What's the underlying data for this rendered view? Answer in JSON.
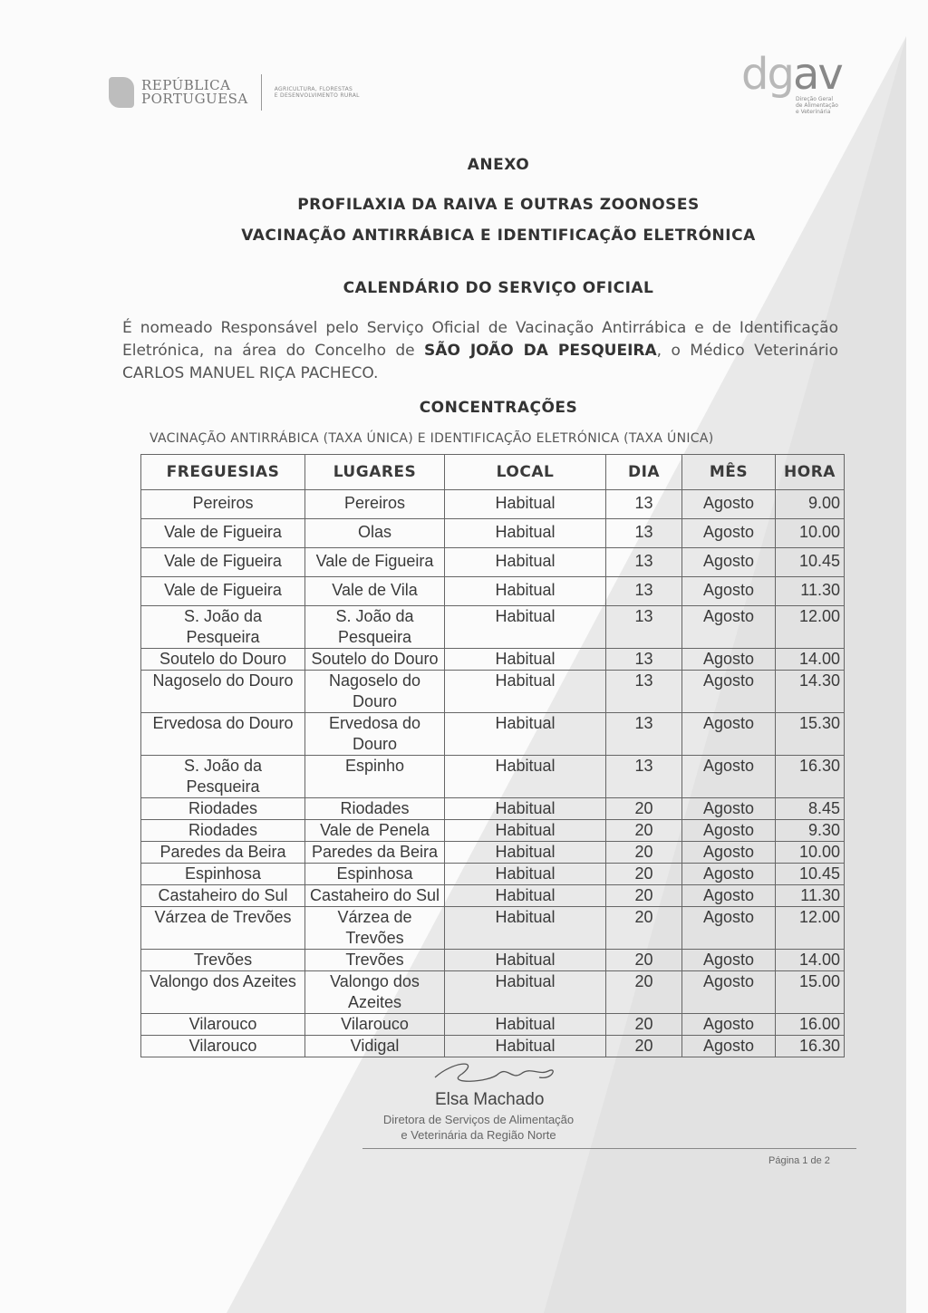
{
  "header": {
    "republica": [
      "REPÚBLICA",
      "PORTUGUESA"
    ],
    "ministerio": [
      "AGRICULTURA, FLORESTAS",
      "E DESENVOLVIMENTO RURAL"
    ],
    "dgav_logo": "dgav",
    "dgav_sub": [
      "Direção Geral",
      "de Alimentação",
      "e Veterinária"
    ]
  },
  "title": "ANEXO",
  "subtitle1": "PROFILAXIA DA RAIVA E OUTRAS ZOONOSES",
  "subtitle2": "VACINAÇÃO ANTIRRÁBICA E IDENTIFICAÇÃO ELETRÓNICA",
  "subtitle3": "CALENDÁRIO DO SERVIÇO OFICIAL",
  "paragraph": {
    "part1": "É nomeado Responsável pelo Serviço Oficial de Vacinação Antirrábica e de Identificação Eletrónica, na área do Concelho de ",
    "bold": "SÃO JOÃO DA PESQUEIRA",
    "part2": ", o Médico Veterinário CARLOS MANUEL RIÇA PACHECO."
  },
  "section": "CONCENTRAÇÕES",
  "section_sub": "VACINAÇÃO ANTIRRÁBICA (TAXA ÚNICA) E IDENTIFICAÇÃO ELETRÓNICA (TAXA ÚNICA)",
  "table": {
    "headers": [
      "FREGUESIAS",
      "LUGARES",
      "LOCAL",
      "DIA",
      "MÊS",
      "HORA"
    ],
    "rows": [
      [
        "Pereiros",
        "Pereiros",
        "Habitual",
        "13",
        "Agosto",
        "9.00"
      ],
      [
        "Vale de Figueira",
        "Olas",
        "Habitual",
        "13",
        "Agosto",
        "10.00"
      ],
      [
        "Vale de Figueira",
        "Vale de Figueira",
        "Habitual",
        "13",
        "Agosto",
        "10.45"
      ],
      [
        "Vale de Figueira",
        "Vale de Vila",
        "Habitual",
        "13",
        "Agosto",
        "11.30"
      ],
      [
        "S. João da Pesqueira",
        "S. João da Pesqueira",
        "Habitual",
        "13",
        "Agosto",
        "12.00"
      ],
      [
        "Soutelo do Douro",
        "Soutelo do Douro",
        "Habitual",
        "13",
        "Agosto",
        "14.00"
      ],
      [
        "Nagoselo do Douro",
        "Nagoselo do Douro",
        "Habitual",
        "13",
        "Agosto",
        "14.30"
      ],
      [
        "Ervedosa do Douro",
        "Ervedosa do Douro",
        "Habitual",
        "13",
        "Agosto",
        "15.30"
      ],
      [
        "S. João da Pesqueira",
        "Espinho",
        "Habitual",
        "13",
        "Agosto",
        "16.30"
      ],
      [
        "Riodades",
        "Riodades",
        "Habitual",
        "20",
        "Agosto",
        "8.45"
      ],
      [
        "Riodades",
        "Vale de Penela",
        "Habitual",
        "20",
        "Agosto",
        "9.30"
      ],
      [
        "Paredes da Beira",
        "Paredes da Beira",
        "Habitual",
        "20",
        "Agosto",
        "10.00"
      ],
      [
        "Espinhosa",
        "Espinhosa",
        "Habitual",
        "20",
        "Agosto",
        "10.45"
      ],
      [
        "Castaheiro do Sul",
        "Castaheiro do Sul",
        "Habitual",
        "20",
        "Agosto",
        "11.30"
      ],
      [
        "Várzea de Trevões",
        "Várzea de Trevões",
        "Habitual",
        "20",
        "Agosto",
        "12.00"
      ],
      [
        "Trevões",
        "Trevões",
        "Habitual",
        "20",
        "Agosto",
        "14.00"
      ],
      [
        "Valongo dos Azeites",
        "Valongo dos Azeites",
        "Habitual",
        "20",
        "Agosto",
        "15.00"
      ],
      [
        "Vilarouco",
        "Vilarouco",
        "Habitual",
        "20",
        "Agosto",
        "16.00"
      ],
      [
        "Vilarouco",
        "Vidigal",
        "Habitual",
        "20",
        "Agosto",
        "16.30"
      ]
    ]
  },
  "signature": {
    "name": "Elsa Machado",
    "title1": "Diretora de Serviços de Alimentação",
    "title2": "e Veterinária da Região Norte"
  },
  "page": "Página 1 de 2"
}
